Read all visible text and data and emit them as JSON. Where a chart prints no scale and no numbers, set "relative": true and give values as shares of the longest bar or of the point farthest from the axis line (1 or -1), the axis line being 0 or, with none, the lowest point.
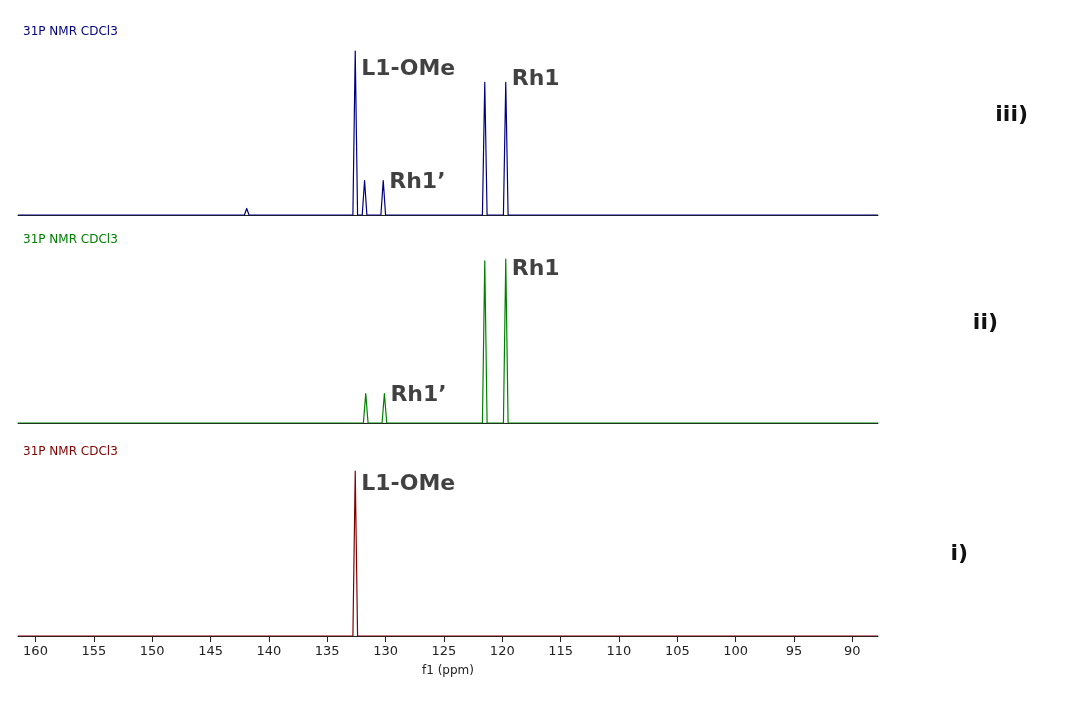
{
  "chart_data": [
    {
      "type": "line",
      "title": "31P NMR CDCl3",
      "relative": true,
      "xlim": [
        161.5,
        87.8
      ],
      "xticks": [
        160,
        155,
        150,
        145,
        140,
        135,
        130,
        125,
        120,
        115,
        110,
        105,
        100,
        95,
        90
      ],
      "tick_labels": false,
      "marker": "none",
      "line_style": "solid",
      "grid": false,
      "series": [
        {
          "color": "#000080",
          "x": [
            161.5,
            142.1,
            141.9,
            141.7,
            132.8,
            132.6,
            132.4,
            132.0,
            131.8,
            131.6,
            130.4,
            130.2,
            130.0,
            121.7,
            121.5,
            121.3,
            119.9,
            119.7,
            119.5,
            87.8
          ],
          "values": [
            0,
            0,
            0.04,
            0,
            0,
            1,
            0,
            0,
            0.21,
            0,
            0,
            0.21,
            0,
            0,
            0.81,
            0,
            0,
            0.81,
            0,
            0
          ]
        }
      ],
      "annotations": [
        {
          "text": "L1-OMe",
          "x": 132.6,
          "y": 0.9
        },
        {
          "text": "Rh1’",
          "x": 130.2,
          "y": 0.21
        },
        {
          "text": "Rh1",
          "x": 119.7,
          "y": 0.84
        },
        "iii)"
      ]
    },
    {
      "type": "line",
      "title": "31P NMR CDCl3",
      "relative": true,
      "xlim": [
        161.5,
        87.8
      ],
      "xticks": [
        160,
        155,
        150,
        145,
        140,
        135,
        130,
        125,
        120,
        115,
        110,
        105,
        100,
        95,
        90
      ],
      "tick_labels": false,
      "marker": "none",
      "line_style": "solid",
      "grid": false,
      "series": [
        {
          "color": "#008000",
          "x": [
            161.5,
            131.9,
            131.7,
            131.5,
            130.3,
            130.1,
            129.9,
            121.7,
            121.5,
            121.3,
            119.9,
            119.7,
            119.5,
            87.8
          ],
          "values": [
            0,
            0,
            0.18,
            0,
            0,
            0.18,
            0,
            0,
            0.99,
            0,
            0,
            1,
            0,
            0
          ]
        }
      ],
      "annotations": [
        {
          "text": "Rh1’",
          "x": 130.1,
          "y": 0.18
        },
        {
          "text": "Rh1",
          "x": 119.7,
          "y": 0.95
        },
        "ii)"
      ]
    },
    {
      "type": "line",
      "title": "31P NMR CDCl3",
      "xlabel": "f1 (ppm)",
      "relative": true,
      "xlim": [
        161.5,
        87.8
      ],
      "xticks": [
        160,
        155,
        150,
        145,
        140,
        135,
        130,
        125,
        120,
        115,
        110,
        105,
        100,
        95,
        90
      ],
      "tick_labels": "x",
      "marker": "none",
      "line_style": "solid",
      "grid": false,
      "series": [
        {
          "color": "#800000",
          "x": [
            161.5,
            132.8,
            132.6,
            132.4,
            87.8
          ],
          "values": [
            0,
            0,
            1,
            0,
            0
          ]
        }
      ],
      "annotations": [
        {
          "text": "L1-OMe",
          "x": 132.6,
          "y": 0.93
        },
        "i)"
      ]
    }
  ]
}
